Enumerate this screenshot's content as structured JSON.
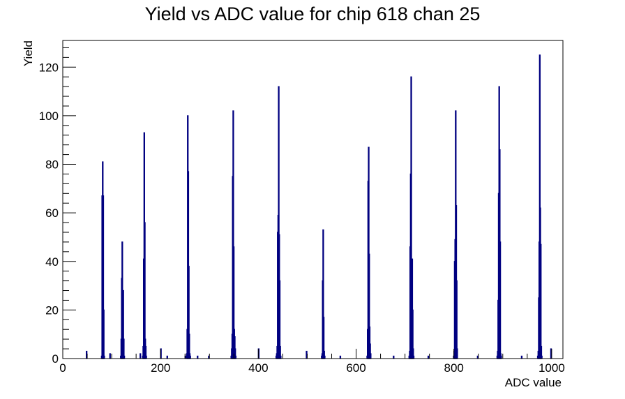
{
  "chart_data": {
    "type": "bar",
    "title": "Yield vs ADC value for chip 618 chan 25",
    "xlabel": "ADC value",
    "ylabel": "Yield",
    "xlim": [
      0,
      1023
    ],
    "ylim": [
      0,
      131
    ],
    "x_ticks": [
      0,
      200,
      400,
      600,
      800,
      1000
    ],
    "y_ticks": [
      0,
      20,
      40,
      60,
      80,
      100,
      120
    ],
    "grid": false,
    "legend": "none",
    "series_color": "#000080",
    "series": [
      {
        "x": [
          48,
          79,
          80,
          81,
          82,
          83,
          84,
          96,
          118,
          119,
          120,
          121,
          122,
          123,
          124,
          125,
          126,
          158,
          163,
          164,
          165,
          166,
          167,
          168,
          169,
          170,
          171,
          200,
          213,
          250,
          253,
          254,
          255,
          256,
          257,
          258,
          259,
          260,
          261,
          275,
          298,
          344,
          345,
          346,
          347,
          348,
          349,
          350,
          351,
          352,
          353,
          354,
          400,
          436,
          437,
          438,
          439,
          440,
          441,
          442,
          443,
          444,
          445,
          446,
          498,
          529,
          530,
          531,
          532,
          533,
          534,
          535,
          567,
          622,
          623,
          624,
          625,
          626,
          627,
          628,
          629,
          630,
          676,
          708,
          709,
          710,
          711,
          712,
          713,
          714,
          715,
          716,
          717,
          718,
          747,
          799,
          800,
          801,
          802,
          803,
          804,
          805,
          806,
          807,
          848,
          888,
          889,
          890,
          891,
          892,
          893,
          894,
          895,
          896,
          897,
          898,
          938,
          971,
          972,
          973,
          974,
          975,
          976,
          977,
          978,
          979,
          980,
          981,
          998
        ],
        "values": [
          3,
          1,
          67,
          81,
          67,
          20,
          1,
          2,
          1,
          8,
          33,
          48,
          22,
          28,
          8,
          1,
          0,
          2,
          1,
          5,
          41,
          93,
          56,
          8,
          5,
          1,
          0,
          4,
          1,
          1,
          2,
          12,
          100,
          77,
          38,
          10,
          2,
          1,
          0,
          1,
          1,
          1,
          4,
          10,
          75,
          102,
          46,
          12,
          9,
          4,
          1,
          0,
          4,
          1,
          2,
          5,
          52,
          59,
          112,
          51,
          32,
          5,
          1,
          0,
          3,
          1,
          2,
          32,
          53,
          17,
          3,
          1,
          1,
          1,
          12,
          73,
          87,
          43,
          13,
          6,
          2,
          0,
          1,
          1,
          3,
          46,
          76,
          116,
          28,
          41,
          20,
          4,
          1,
          0,
          1,
          1,
          3,
          40,
          49,
          102,
          63,
          32,
          4,
          0,
          1,
          1,
          3,
          24,
          68,
          112,
          86,
          48,
          2,
          1,
          0,
          0,
          1,
          1,
          3,
          25,
          48,
          125,
          62,
          47,
          5,
          1,
          0,
          0,
          4
        ]
      }
    ]
  }
}
